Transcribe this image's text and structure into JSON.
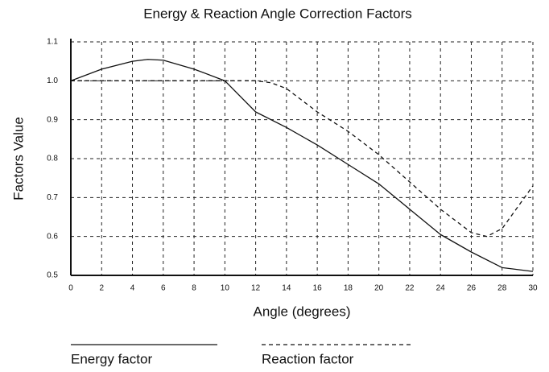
{
  "chart_data": {
    "type": "line",
    "title": "Energy & Reaction Angle Correction Factors",
    "x_label": "Angle (degrees)",
    "y_label": "Factors Value",
    "series": [
      {
        "name": "Energy factor",
        "color": "#111111",
        "dash": false,
        "x": [
          0,
          2,
          4,
          5,
          6,
          8,
          10,
          12,
          14,
          16,
          18,
          20,
          22,
          24,
          26,
          28,
          30
        ],
        "values": [
          1.0,
          1.03,
          1.05,
          1.055,
          1.053,
          1.03,
          1.0,
          0.92,
          0.88,
          0.835,
          0.785,
          0.735,
          0.67,
          0.605,
          0.56,
          0.52,
          0.51
        ]
      },
      {
        "name": "Reaction factor",
        "color": "#111111",
        "dash": true,
        "x": [
          0,
          10,
          12,
          13,
          14,
          16,
          18,
          20,
          22,
          24,
          26,
          27,
          28,
          30
        ],
        "values": [
          1.0,
          1.0,
          1.0,
          0.995,
          0.98,
          0.92,
          0.87,
          0.81,
          0.74,
          0.67,
          0.61,
          0.6,
          0.62,
          0.73
        ]
      }
    ],
    "xlim": [
      0,
      30
    ],
    "xticks": [
      0,
      2,
      4,
      6,
      8,
      10,
      12,
      14,
      16,
      18,
      20,
      22,
      24,
      26,
      28,
      30
    ],
    "ylim": [
      0.5,
      1.1
    ],
    "yticks": [
      0.5,
      0.6,
      0.7,
      0.8,
      0.9,
      {
        "value": 1,
        "label": "1.0"
      },
      1.1
    ],
    "grid": true,
    "legend": "bottom"
  }
}
